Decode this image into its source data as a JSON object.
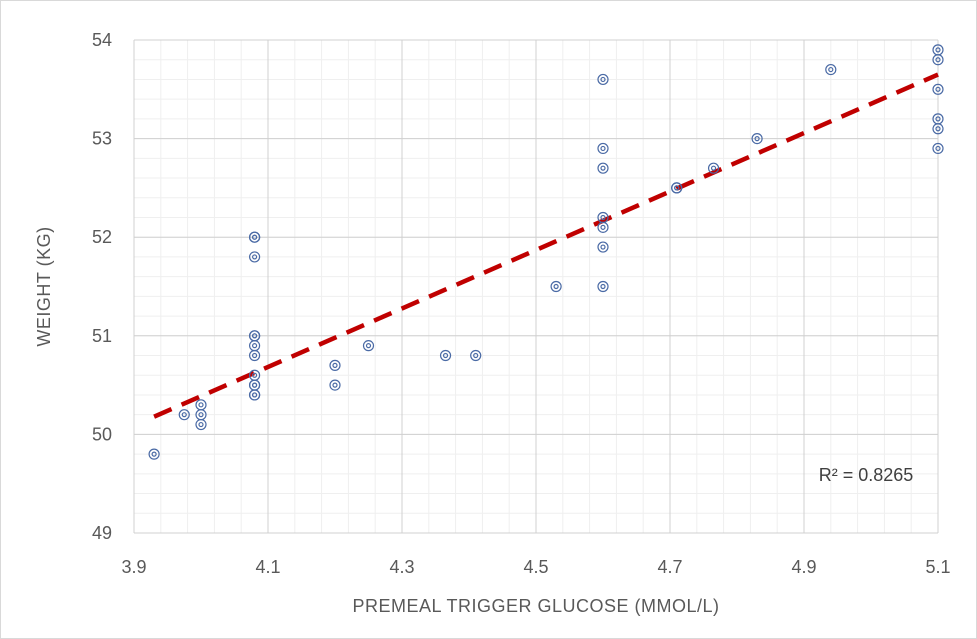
{
  "chart_data": {
    "type": "scatter",
    "xlabel": "PREMEAL TRIGGER GLUCOSE (MMOL/L)",
    "ylabel": "WEIGHT (KG)",
    "xlim": [
      3.9,
      5.1
    ],
    "ylim": [
      49,
      54
    ],
    "x_ticks": [
      "3.9",
      "4.1",
      "4.3",
      "4.5",
      "4.7",
      "4.9",
      "5.1"
    ],
    "y_ticks": [
      "49",
      "50",
      "51",
      "52",
      "53",
      "54"
    ],
    "grid": true,
    "minor_grid": true,
    "marker_color": "#4a6aa5",
    "trendline": {
      "type": "linear",
      "color": "#c00000",
      "style": "dashed",
      "start": [
        3.93,
        50.18
      ],
      "end": [
        5.1,
        53.65
      ],
      "r_squared_label": "R² = 0.8265"
    },
    "points": [
      [
        3.93,
        49.8
      ],
      [
        3.975,
        50.2
      ],
      [
        4.0,
        50.3
      ],
      [
        4.0,
        50.2
      ],
      [
        4.0,
        50.1
      ],
      [
        4.08,
        52.0
      ],
      [
        4.08,
        52.0
      ],
      [
        4.08,
        51.8
      ],
      [
        4.08,
        51.0
      ],
      [
        4.08,
        51.0
      ],
      [
        4.08,
        50.9
      ],
      [
        4.08,
        50.8
      ],
      [
        4.08,
        50.6
      ],
      [
        4.08,
        50.5
      ],
      [
        4.08,
        50.5
      ],
      [
        4.08,
        50.4
      ],
      [
        4.08,
        50.4
      ],
      [
        4.2,
        50.7
      ],
      [
        4.2,
        50.5
      ],
      [
        4.25,
        50.9
      ],
      [
        4.365,
        50.8
      ],
      [
        4.41,
        50.8
      ],
      [
        4.53,
        51.5
      ],
      [
        4.6,
        53.6
      ],
      [
        4.6,
        52.9
      ],
      [
        4.6,
        52.7
      ],
      [
        4.6,
        52.2
      ],
      [
        4.6,
        52.1
      ],
      [
        4.6,
        51.9
      ],
      [
        4.6,
        51.5
      ],
      [
        4.71,
        52.5
      ],
      [
        4.71,
        52.5
      ],
      [
        4.765,
        52.7
      ],
      [
        4.83,
        53.0
      ],
      [
        4.94,
        53.7
      ],
      [
        5.1,
        53.9
      ],
      [
        5.1,
        53.8
      ],
      [
        5.1,
        53.5
      ],
      [
        5.1,
        53.2
      ],
      [
        5.1,
        53.1
      ],
      [
        5.1,
        52.9
      ]
    ]
  }
}
